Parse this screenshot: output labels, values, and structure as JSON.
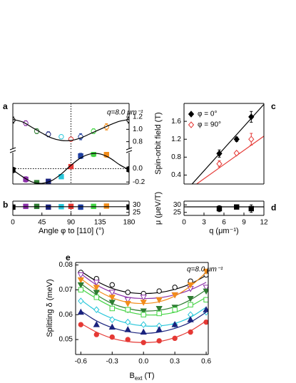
{
  "chart_data": [
    {
      "type": "scatter",
      "label": "a",
      "annotation": "q=8.0 μm⁻¹",
      "xlim": [
        0,
        180
      ],
      "ylim": [
        0.68,
        1.42
      ],
      "yticks": [
        0.8,
        {
          "value": 1,
          "label": "1.0"
        },
        1.2
      ],
      "vline": 90,
      "x": [
        0,
        20,
        37,
        55,
        75,
        90,
        105,
        125,
        145,
        180
      ],
      "series": [
        {
          "values": [
            1.15,
            1.1,
            0.97,
            0.92,
            0.88,
            0.84,
            0.88,
            0.97,
            1.04,
            1.15
          ],
          "errors": [
            0.05,
            0.04,
            0.04,
            0.04,
            0.03,
            0.03,
            0.05,
            0.04,
            0.05,
            0.05
          ],
          "colors": [
            "#000000",
            "#8b2fa8",
            "#2e7d32",
            "#1a237e",
            "#26c6da",
            "#e53935",
            "#1e3fa0",
            "#43d443",
            "#f28c1a",
            "#000000"
          ],
          "marker": "circle-open"
        },
        {
          "x": [
            0,
            15,
            30,
            45,
            60,
            75,
            90,
            105,
            120,
            135,
            150,
            165,
            180
          ],
          "values": [
            1.16,
            1.12,
            1.03,
            0.94,
            0.86,
            0.82,
            0.82,
            0.86,
            0.93,
            1.0,
            1.07,
            1.13,
            1.16
          ],
          "color": "#000000",
          "marker": "line"
        }
      ]
    },
    {
      "type": "scatter",
      "xlim": [
        0,
        180
      ],
      "ylim": [
        -0.23,
        0.25
      ],
      "yticks": [
        -0.2,
        {
          "value": 0,
          "label": "0.0"
        }
      ],
      "vline": 90,
      "hline": 0,
      "x": [
        0,
        20,
        37,
        55,
        75,
        90,
        105,
        125,
        145,
        180
      ],
      "series": [
        {
          "values": [
            -0.02,
            -0.16,
            -0.21,
            -0.19,
            -0.12,
            0.03,
            0.19,
            0.22,
            0.21,
            -0.01
          ],
          "errors": [
            0.04,
            0.04,
            0.03,
            0.03,
            0.03,
            0.03,
            0.04,
            0.04,
            0.04,
            0.04
          ],
          "colors": [
            "#000000",
            "#8b2fa8",
            "#2e7d32",
            "#1a237e",
            "#26c6da",
            "#e53935",
            "#1e3fa0",
            "#43d443",
            "#f28c1a",
            "#000000"
          ],
          "marker": "square"
        },
        {
          "x": [
            0,
            15,
            30,
            45,
            60,
            75,
            90,
            105,
            120,
            135,
            150,
            165,
            180
          ],
          "values": [
            -0.02,
            -0.12,
            -0.2,
            -0.22,
            -0.18,
            -0.08,
            0.05,
            0.16,
            0.22,
            0.22,
            0.16,
            0.06,
            -0.02
          ],
          "color": "#000000",
          "marker": "line"
        }
      ]
    },
    {
      "type": "scatter",
      "label": "b",
      "xlabel": "Angle φ to [110] (°)",
      "xlim": [
        0,
        180
      ],
      "xticks": [
        0,
        45,
        90,
        135,
        180
      ],
      "ylim": [
        23,
        32.5
      ],
      "yticks": [
        30,
        25
      ],
      "vline": 90,
      "x": [
        0,
        20,
        37,
        55,
        75,
        90,
        105,
        125,
        145,
        180
      ],
      "series": [
        {
          "values": [
            28.5,
            29,
            29,
            28.5,
            28.8,
            29,
            28.5,
            29,
            29.2,
            28.5
          ],
          "errors": [
            1.5,
            1.2,
            1.2,
            1.2,
            1.2,
            1.2,
            1.5,
            1.2,
            1.2,
            1.5
          ],
          "colors": [
            "#000000",
            "#8b2fa8",
            "#2e7d32",
            "#1a237e",
            "#26c6da",
            "#e53935",
            "#1e3fa0",
            "#43d443",
            "#f28c1a",
            "#000000"
          ],
          "marker": "square"
        },
        {
          "x": [
            0,
            180
          ],
          "values": [
            28.8,
            28.8
          ],
          "color": "#000000",
          "marker": "line"
        }
      ]
    },
    {
      "type": "scatter",
      "label": "c",
      "ylabel": "Spin-orbit field (T)",
      "xlim": [
        0,
        12
      ],
      "ylim": [
        0.2,
        2.0
      ],
      "yticks": [
        0.4,
        0.8,
        1.2,
        1.6
      ],
      "series": [
        {
          "x": [
            0,
            12
          ],
          "values": [
            0,
            1.98
          ],
          "color": "#000000",
          "marker": "line"
        },
        {
          "x": [
            0,
            12
          ],
          "values": [
            0,
            1.27
          ],
          "color": "#e53935",
          "marker": "line"
        },
        {
          "name": "φ = 0°",
          "x": [
            5.3,
            7.9,
            10.1
          ],
          "values": [
            0.88,
            1.2,
            1.7
          ],
          "errors": [
            0.08,
            0.05,
            0.12
          ],
          "color": "#000000",
          "marker": "diamond"
        },
        {
          "name": "φ = 90°",
          "x": [
            5.3,
            7.9,
            10.1
          ],
          "values": [
            0.65,
            0.89,
            1.2
          ],
          "errors": [
            0.07,
            0.04,
            0.13
          ],
          "color": "#e53935",
          "marker": "diamond-open"
        }
      ]
    },
    {
      "type": "scatter",
      "label": "d",
      "ylabel": "μ (μeV/T)",
      "xlabel": "q (μm⁻¹)",
      "xlim": [
        0,
        12
      ],
      "xticks": [
        0,
        3,
        6,
        9,
        12
      ],
      "ylim": [
        23,
        32.5
      ],
      "yticks": [
        30,
        25
      ],
      "series": [
        {
          "x": [
            0,
            12
          ],
          "values": [
            28.7,
            28.7
          ],
          "color": "#000000",
          "marker": "line"
        },
        {
          "x": [
            5.3,
            7.9,
            10.1
          ],
          "values": [
            27.5,
            28.6,
            27.5
          ],
          "errors": [
            2,
            1,
            2.5
          ],
          "color": "#000000",
          "marker": "square"
        }
      ]
    },
    {
      "type": "scatter",
      "label": "e",
      "annotation": "q=8.0 μm⁻¹",
      "ylabel": "Splitting δ (meV)",
      "xlabel": [
        "B",
        "ext",
        "(T)"
      ],
      "xlim": [
        -0.65,
        0.62
      ],
      "xticks": [
        -0.6,
        -0.3,
        {
          "value": 0,
          "label": "0.0"
        },
        0.3,
        0.6
      ],
      "ylim": [
        0.044,
        0.081
      ],
      "yticks": [
        0.08,
        0.07,
        0.06,
        0.05
      ],
      "x": [
        -0.6,
        -0.45,
        -0.3,
        -0.15,
        0,
        0.15,
        0.3,
        0.45,
        0.6
      ],
      "series": [
        {
          "values": [
            0.0775,
            0.0735,
            0.0706,
            0.069,
            0.0685,
            0.0689,
            0.0702,
            0.0724,
            0.0758
          ],
          "color": "#000000",
          "marker": "line"
        },
        {
          "values": [
            0.077,
            0.0745,
            0.072,
            0.069,
            0.0685,
            0.0695,
            0.071,
            0.0735,
            0.076
          ],
          "color": "#000000",
          "marker": "circle-open"
        },
        {
          "values": [
            0.0765,
            0.072,
            0.069,
            0.067,
            0.0665,
            0.0668,
            0.068,
            0.07,
            0.073
          ],
          "color": "#8b2fa8",
          "marker": "line"
        },
        {
          "values": [
            0.076,
            0.073,
            0.069,
            0.066,
            0.067,
            0.066,
            0.068,
            0.0705,
            0.071
          ],
          "color": "#8b2fa8",
          "marker": "tri-down-open"
        },
        {
          "values": [
            0.0745,
            0.07,
            0.0668,
            0.065,
            0.0645,
            0.0652,
            0.0675,
            0.0715,
            0.077
          ],
          "color": "#f28c1a",
          "marker": "line"
        },
        {
          "values": [
            0.074,
            0.071,
            0.067,
            0.0645,
            0.065,
            0.066,
            0.068,
            0.072,
            0.0775
          ],
          "color": "#f28c1a",
          "marker": "tri-down"
        },
        {
          "values": [
            0.0725,
            0.068,
            0.0645,
            0.0625,
            0.0615,
            0.0618,
            0.0632,
            0.066,
            0.07
          ],
          "color": "#2e7d32",
          "marker": "line"
        },
        {
          "values": [
            0.072,
            0.069,
            0.065,
            0.062,
            0.0615,
            0.0625,
            0.063,
            0.0665,
            0.0695
          ],
          "color": "#2e7d32",
          "marker": "tri-down"
        },
        {
          "values": [
            0.0705,
            0.0665,
            0.0632,
            0.0612,
            0.06,
            0.06,
            0.061,
            0.0635,
            0.067
          ],
          "color": "#43d443",
          "marker": "line"
        },
        {
          "values": [
            0.07,
            0.067,
            0.0625,
            0.062,
            0.06,
            0.0605,
            0.062,
            0.064,
            0.066
          ],
          "color": "#43d443",
          "marker": "square-open"
        },
        {
          "values": [
            0.066,
            0.0615,
            0.0585,
            0.0565,
            0.0555,
            0.0555,
            0.0565,
            0.059,
            0.063
          ],
          "color": "#26c6da",
          "marker": "line"
        },
        {
          "values": [
            0.0655,
            0.062,
            0.058,
            0.057,
            0.056,
            0.0555,
            0.056,
            0.06,
            0.061
          ],
          "color": "#26c6da",
          "marker": "diamond-open"
        },
        {
          "values": [
            0.0615,
            0.0575,
            0.0548,
            0.0532,
            0.0525,
            0.053,
            0.0545,
            0.057,
            0.061
          ],
          "color": "#1a237e",
          "marker": "line"
        },
        {
          "values": [
            0.061,
            0.056,
            0.055,
            0.054,
            0.053,
            0.054,
            0.056,
            0.058,
            0.062
          ],
          "color": "#1a237e",
          "marker": "tri-up"
        },
        {
          "values": [
            0.0565,
            0.053,
            0.0505,
            0.0492,
            0.0488,
            0.0492,
            0.0508,
            0.0535,
            0.0575
          ],
          "color": "#e53935",
          "marker": "line"
        },
        {
          "values": [
            0.056,
            0.052,
            0.051,
            0.05,
            0.0488,
            0.0495,
            0.0505,
            0.053,
            0.057
          ],
          "color": "#e53935",
          "marker": "circle"
        }
      ]
    }
  ]
}
